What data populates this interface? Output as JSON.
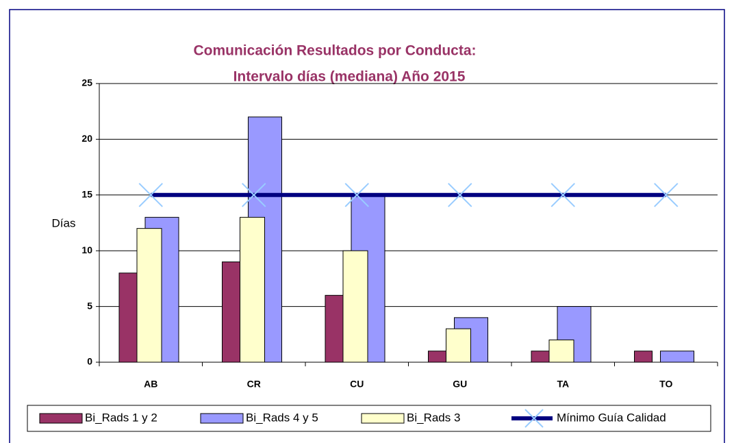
{
  "chart_data": {
    "type": "bar",
    "title": "Comunicación Resultados por Conducta:",
    "subtitle": "Intervalo días (mediana) Año 2015",
    "y_label": "Días",
    "categories": [
      "AB",
      "CR",
      "CU",
      "GU",
      "TA",
      "TO"
    ],
    "series": [
      {
        "name": "Bi_Rads 1 y 2",
        "color": "#993366",
        "values": [
          8,
          9,
          6,
          1,
          1,
          1
        ]
      },
      {
        "name": "Bi_Rads 4 y 5",
        "color": "#9999FF",
        "values": [
          13,
          22,
          15,
          4,
          5,
          1
        ]
      },
      {
        "name": "Bi_Rads 3",
        "color": "#FFFFCC",
        "values": [
          12,
          13,
          10,
          3,
          2,
          null
        ]
      },
      {
        "name": "Mínimo Guía Calidad",
        "color": "#000080",
        "marker_color": "#99CCFF",
        "type": "line",
        "values": [
          15,
          15,
          15,
          15,
          15,
          15
        ]
      }
    ],
    "ylim": [
      0,
      25
    ],
    "yticks": [
      0,
      5,
      10,
      15,
      20,
      25
    ],
    "grid": true,
    "legend": "bottom"
  }
}
